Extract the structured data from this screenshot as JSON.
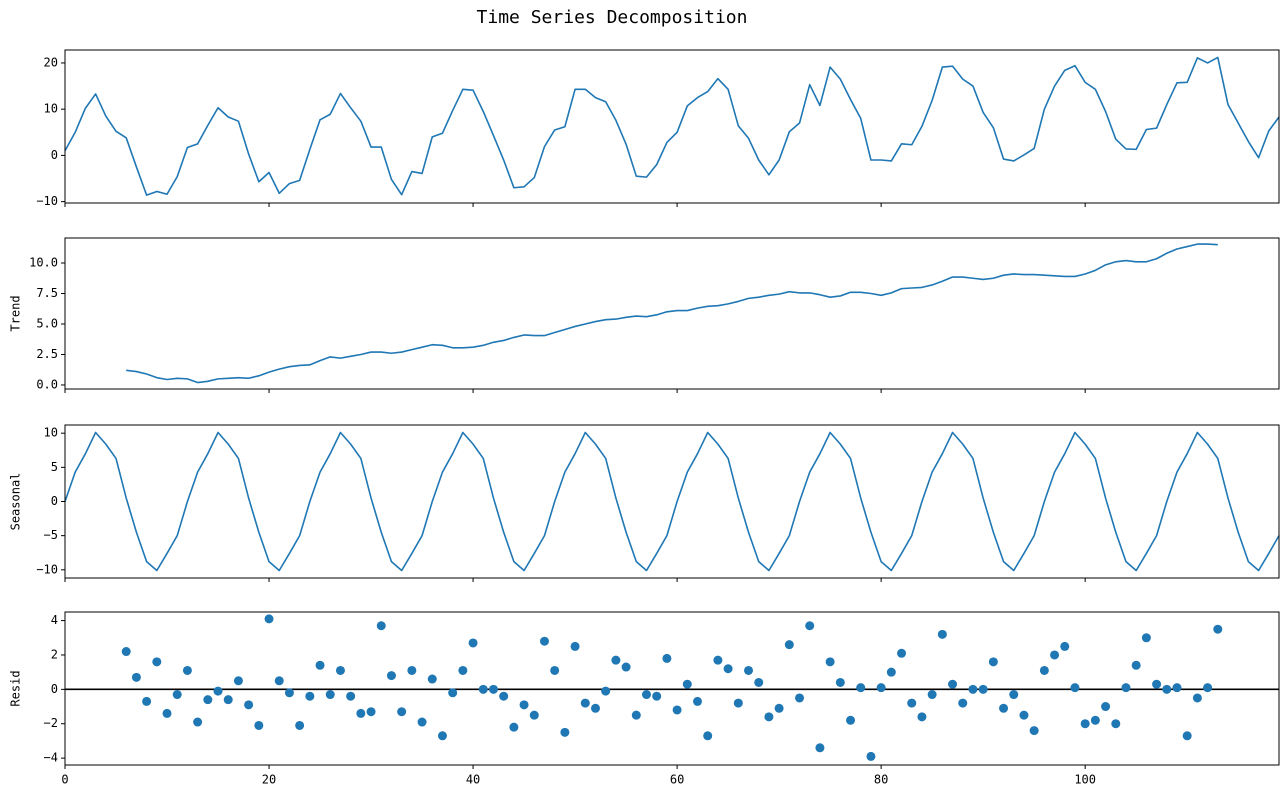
{
  "chart_data": {
    "type": "decomposition",
    "title": "Time Series Decomposition",
    "color": "#1f77b4",
    "xlim": [
      0,
      119
    ],
    "xticks": [
      0,
      20,
      40,
      60,
      80,
      100
    ],
    "x": [
      0,
      1,
      2,
      3,
      4,
      5,
      6,
      7,
      8,
      9,
      10,
      11,
      12,
      13,
      14,
      15,
      16,
      17,
      18,
      19,
      20,
      21,
      22,
      23,
      24,
      25,
      26,
      27,
      28,
      29,
      30,
      31,
      32,
      33,
      34,
      35,
      36,
      37,
      38,
      39,
      40,
      41,
      42,
      43,
      44,
      45,
      46,
      47,
      48,
      49,
      50,
      51,
      52,
      53,
      54,
      55,
      56,
      57,
      58,
      59,
      60,
      61,
      62,
      63,
      64,
      65,
      66,
      67,
      68,
      69,
      70,
      71,
      72,
      73,
      74,
      75,
      76,
      77,
      78,
      79,
      80,
      81,
      82,
      83,
      84,
      85,
      86,
      87,
      88,
      89,
      90,
      91,
      92,
      93,
      94,
      95,
      96,
      97,
      98,
      99,
      100,
      101,
      102,
      103,
      104,
      105,
      106,
      107,
      108,
      109,
      110,
      111,
      112,
      113,
      114,
      115,
      116,
      117,
      118,
      119
    ],
    "panels": [
      {
        "type": "line",
        "ylim": [
          -10.3,
          22.8
        ],
        "yticks": [
          {
            "value": -10,
            "label": "−10"
          },
          0,
          10,
          20
        ],
        "values": [
          1,
          5,
          10.2,
          13.3,
          8.5,
          5.2,
          3.8,
          -2.5,
          -8.6,
          -7.8,
          -8.4,
          -4.6,
          1.7,
          2.5,
          6.5,
          10.3,
          8.3,
          7.4,
          0.3,
          -5.7,
          -3.7,
          -8.2,
          -6.1,
          -5.4,
          1.3,
          7.7,
          8.9,
          13.4,
          10.3,
          7.4,
          1.8,
          1.8,
          -5.2,
          -8.5,
          -3.5,
          -3.9,
          4,
          4.8,
          9.7,
          14.3,
          14.1,
          9.5,
          4.3,
          -1,
          -7,
          -6.8,
          -4.8,
          1.9,
          5.5,
          6.2,
          14.3,
          14.3,
          12.5,
          11.6,
          7.6,
          2.4,
          -4.5,
          -4.7,
          -2,
          2.8,
          5,
          10.7,
          12.5,
          13.8,
          16.6,
          14.3,
          6.4,
          3.7,
          -1,
          -4.2,
          -1,
          5.1,
          7,
          15.3,
          10.8,
          19.1,
          16.5,
          12.1,
          8,
          -1,
          -1,
          -1.2,
          2.5,
          2.3,
          6.3,
          11.9,
          19.1,
          19.3,
          16.5,
          15,
          9.3,
          6,
          -0.8,
          -1.2,
          0.1,
          1.5,
          10,
          15,
          18.4,
          19.4,
          15.8,
          14.3,
          9.5,
          3.5,
          1.4,
          1.3,
          5.6,
          5.9,
          11,
          15.7,
          15.8,
          21.1,
          20,
          21.2,
          11,
          7,
          3,
          -0.5,
          5.3,
          8.3
        ]
      },
      {
        "type": "line",
        "ylabel": "Trend",
        "ylim": [
          -0.33,
          12.05
        ],
        "yticks": [
          {
            "value": 0,
            "label": "0.0"
          },
          {
            "value": 2.5,
            "label": "2.5"
          },
          {
            "value": 5,
            "label": "5.0"
          },
          {
            "value": 7.5,
            "label": "7.5"
          },
          {
            "value": 10,
            "label": "10.0"
          }
        ],
        "values": [
          null,
          null,
          null,
          null,
          null,
          null,
          1.2,
          1.1,
          0.9,
          0.6,
          0.45,
          0.55,
          0.5,
          0.2,
          0.3,
          0.5,
          0.55,
          0.6,
          0.55,
          0.75,
          1.05,
          1.3,
          1.5,
          1.6,
          1.65,
          2,
          2.3,
          2.2,
          2.35,
          2.5,
          2.7,
          2.7,
          2.6,
          2.7,
          2.9,
          3.1,
          3.3,
          3.25,
          3.05,
          3.05,
          3.1,
          3.25,
          3.5,
          3.65,
          3.9,
          4.1,
          4.05,
          4.05,
          4.3,
          4.55,
          4.8,
          5,
          5.2,
          5.35,
          5.4,
          5.55,
          5.65,
          5.6,
          5.75,
          6,
          6.1,
          6.1,
          6.3,
          6.45,
          6.5,
          6.65,
          6.85,
          7.1,
          7.2,
          7.35,
          7.45,
          7.65,
          7.55,
          7.55,
          7.4,
          7.2,
          7.3,
          7.6,
          7.6,
          7.5,
          7.35,
          7.55,
          7.9,
          7.95,
          8,
          8.2,
          8.5,
          8.85,
          8.85,
          8.75,
          8.65,
          8.75,
          9,
          9.1,
          9.05,
          9.05,
          9,
          8.95,
          8.9,
          8.9,
          9.1,
          9.4,
          9.85,
          10.1,
          10.2,
          10.1,
          10.1,
          10.35,
          10.8,
          11.15,
          11.35,
          11.55,
          11.55,
          11.5,
          null,
          null,
          null,
          null,
          null,
          null
        ]
      },
      {
        "type": "line",
        "ylabel": "Seasonal",
        "ylim": [
          -11.2,
          11.2
        ],
        "yticks": [
          {
            "value": -10,
            "label": "−10"
          },
          {
            "value": -5,
            "label": "−5"
          },
          0,
          5,
          10
        ],
        "values": [
          0,
          4.3,
          7,
          10.1,
          8.4,
          6.3,
          0.5,
          -4.5,
          -8.8,
          -10.1,
          -7.6,
          -5,
          0,
          4.3,
          7,
          10.1,
          8.4,
          6.3,
          0.5,
          -4.5,
          -8.8,
          -10.1,
          -7.6,
          -5,
          0,
          4.3,
          7,
          10.1,
          8.4,
          6.3,
          0.5,
          -4.5,
          -8.8,
          -10.1,
          -7.6,
          -5,
          0,
          4.3,
          7,
          10.1,
          8.4,
          6.3,
          0.5,
          -4.5,
          -8.8,
          -10.1,
          -7.6,
          -5,
          0,
          4.3,
          7,
          10.1,
          8.4,
          6.3,
          0.5,
          -4.5,
          -8.8,
          -10.1,
          -7.6,
          -5,
          0,
          4.3,
          7,
          10.1,
          8.4,
          6.3,
          0.5,
          -4.5,
          -8.8,
          -10.1,
          -7.6,
          -5,
          0,
          4.3,
          7,
          10.1,
          8.4,
          6.3,
          0.5,
          -4.5,
          -8.8,
          -10.1,
          -7.6,
          -5,
          0,
          4.3,
          7,
          10.1,
          8.4,
          6.3,
          0.5,
          -4.5,
          -8.8,
          -10.1,
          -7.6,
          -5,
          0,
          4.3,
          7,
          10.1,
          8.4,
          6.3,
          0.5,
          -4.5,
          -8.8,
          -10.1,
          -7.6,
          -5,
          0,
          4.3,
          7,
          10.1,
          8.4,
          6.3,
          0.5,
          -4.5,
          -8.8,
          -10.1,
          -7.6,
          -5
        ]
      },
      {
        "type": "scatter",
        "ylabel": "Resid",
        "ylim": [
          -4.4,
          4.5
        ],
        "yticks": [
          {
            "value": -4,
            "label": "−4"
          },
          {
            "value": -2,
            "label": "−2"
          },
          0,
          2,
          4
        ],
        "baseline": 0,
        "values": [
          null,
          null,
          null,
          null,
          null,
          null,
          2.2,
          0.7,
          -0.7,
          1.6,
          -1.4,
          -0.3,
          1.1,
          -1.9,
          -0.6,
          -0.1,
          -0.6,
          0.5,
          -0.9,
          -2.1,
          4.1,
          0.5,
          -0.2,
          -2.1,
          -0.4,
          1.4,
          -0.3,
          1.1,
          -0.4,
          -1.4,
          -1.3,
          3.7,
          0.8,
          -1.3,
          1.1,
          -1.9,
          0.6,
          -2.7,
          -0.2,
          1.1,
          2.7,
          0,
          0,
          -0.4,
          -2.2,
          -0.9,
          -1.5,
          2.8,
          1.1,
          -2.5,
          2.5,
          -0.8,
          -1.1,
          -0.1,
          1.7,
          1.3,
          -1.5,
          -0.3,
          -0.4,
          1.8,
          -1.2,
          0.3,
          -0.7,
          -2.7,
          1.7,
          1.2,
          -0.8,
          1.1,
          0.4,
          -1.6,
          -1.1,
          2.6,
          -0.5,
          3.7,
          -3.4,
          1.6,
          0.4,
          -1.8,
          0.1,
          -3.9,
          0.1,
          1,
          2.1,
          -0.8,
          -1.6,
          -0.3,
          3.2,
          0.3,
          -0.8,
          0,
          0,
          1.6,
          -1.1,
          -0.3,
          -1.5,
          -2.4,
          1.1,
          2,
          2.5,
          0.1,
          -2,
          -1.8,
          -1,
          -2,
          0.1,
          1.4,
          3,
          0.3,
          0,
          0.1,
          -2.7,
          -0.5,
          0.1,
          3.5,
          null,
          null,
          null,
          null,
          null,
          null
        ]
      }
    ]
  }
}
